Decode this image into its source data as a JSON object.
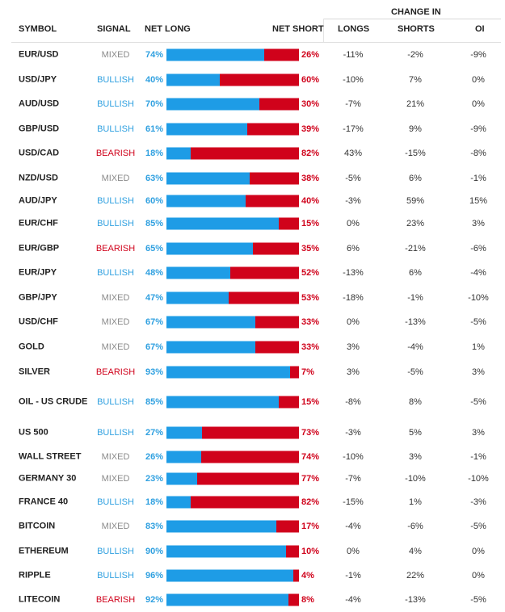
{
  "header": {
    "change_in": "CHANGE IN",
    "symbol": "SYMBOL",
    "signal": "SIGNAL",
    "net_long": "NET LONG",
    "net_short": "NET SHORT",
    "longs": "LONGS",
    "shorts": "SHORTS",
    "oi": "OI"
  },
  "colors": {
    "long_bar": "#1e9ce6",
    "short_bar": "#d0021b",
    "bullish": "#2fa0e0",
    "bearish": "#d0021b",
    "mixed": "#8a8a8a"
  },
  "rows": [
    {
      "symbol": "EUR/USD",
      "signal": "MIXED",
      "long": 74,
      "short": 26,
      "long_label": "74%",
      "short_label": "26%",
      "chg_longs": "-11%",
      "chg_shorts": "-2%",
      "chg_oi": "-9%"
    },
    {
      "symbol": "USD/JPY",
      "signal": "BULLISH",
      "long": 40,
      "short": 60,
      "long_label": "40%",
      "short_label": "60%",
      "chg_longs": "-10%",
      "chg_shorts": "7%",
      "chg_oi": "0%"
    },
    {
      "symbol": "AUD/USD",
      "signal": "BULLISH",
      "long": 70,
      "short": 30,
      "long_label": "70%",
      "short_label": "30%",
      "chg_longs": "-7%",
      "chg_shorts": "21%",
      "chg_oi": "0%"
    },
    {
      "symbol": "GBP/USD",
      "signal": "BULLISH",
      "long": 61,
      "short": 39,
      "long_label": "61%",
      "short_label": "39%",
      "chg_longs": "-17%",
      "chg_shorts": "9%",
      "chg_oi": "-9%"
    },
    {
      "symbol": "USD/CAD",
      "signal": "BEARISH",
      "long": 18,
      "short": 82,
      "long_label": "18%",
      "short_label": "82%",
      "chg_longs": "43%",
      "chg_shorts": "-15%",
      "chg_oi": "-8%"
    },
    {
      "symbol": "NZD/USD",
      "signal": "MIXED",
      "long": 63,
      "short": 38,
      "long_label": "63%",
      "short_label": "38%",
      "chg_longs": "-5%",
      "chg_shorts": "6%",
      "chg_oi": "-1%"
    },
    {
      "symbol": "AUD/JPY",
      "signal": "BULLISH",
      "long": 60,
      "short": 40,
      "long_label": "60%",
      "short_label": "40%",
      "chg_longs": "-3%",
      "chg_shorts": "59%",
      "chg_oi": "15%"
    },
    {
      "symbol": "EUR/CHF",
      "signal": "BULLISH",
      "long": 85,
      "short": 15,
      "long_label": "85%",
      "short_label": "15%",
      "chg_longs": "0%",
      "chg_shorts": "23%",
      "chg_oi": "3%"
    },
    {
      "symbol": "EUR/GBP",
      "signal": "BEARISH",
      "long": 65,
      "short": 35,
      "long_label": "65%",
      "short_label": "35%",
      "chg_longs": "6%",
      "chg_shorts": "-21%",
      "chg_oi": "-6%"
    },
    {
      "symbol": "EUR/JPY",
      "signal": "BULLISH",
      "long": 48,
      "short": 52,
      "long_label": "48%",
      "short_label": "52%",
      "chg_longs": "-13%",
      "chg_shorts": "6%",
      "chg_oi": "-4%"
    },
    {
      "symbol": "GBP/JPY",
      "signal": "MIXED",
      "long": 47,
      "short": 53,
      "long_label": "47%",
      "short_label": "53%",
      "chg_longs": "-18%",
      "chg_shorts": "-1%",
      "chg_oi": "-10%"
    },
    {
      "symbol": "USD/CHF",
      "signal": "MIXED",
      "long": 67,
      "short": 33,
      "long_label": "67%",
      "short_label": "33%",
      "chg_longs": "0%",
      "chg_shorts": "-13%",
      "chg_oi": "-5%"
    },
    {
      "symbol": "GOLD",
      "signal": "MIXED",
      "long": 67,
      "short": 33,
      "long_label": "67%",
      "short_label": "33%",
      "chg_longs": "3%",
      "chg_shorts": "-4%",
      "chg_oi": "1%"
    },
    {
      "symbol": "SILVER",
      "signal": "BEARISH",
      "long": 93,
      "short": 7,
      "long_label": "93%",
      "short_label": "7%",
      "chg_longs": "3%",
      "chg_shorts": "-5%",
      "chg_oi": "3%"
    },
    {
      "symbol": "OIL - US CRUDE",
      "signal": "BULLISH",
      "long": 85,
      "short": 15,
      "long_label": "85%",
      "short_label": "15%",
      "chg_longs": "-8%",
      "chg_shorts": "8%",
      "chg_oi": "-5%"
    },
    {
      "symbol": "US 500",
      "signal": "BULLISH",
      "long": 27,
      "short": 73,
      "long_label": "27%",
      "short_label": "73%",
      "chg_longs": "-3%",
      "chg_shorts": "5%",
      "chg_oi": "3%"
    },
    {
      "symbol": "WALL STREET",
      "signal": "MIXED",
      "long": 26,
      "short": 74,
      "long_label": "26%",
      "short_label": "74%",
      "chg_longs": "-10%",
      "chg_shorts": "3%",
      "chg_oi": "-1%"
    },
    {
      "symbol": "GERMANY 30",
      "signal": "MIXED",
      "long": 23,
      "short": 77,
      "long_label": "23%",
      "short_label": "77%",
      "chg_longs": "-7%",
      "chg_shorts": "-10%",
      "chg_oi": "-10%"
    },
    {
      "symbol": "FRANCE 40",
      "signal": "BULLISH",
      "long": 18,
      "short": 82,
      "long_label": "18%",
      "short_label": "82%",
      "chg_longs": "-15%",
      "chg_shorts": "1%",
      "chg_oi": "-3%"
    },
    {
      "symbol": "BITCOIN",
      "signal": "MIXED",
      "long": 83,
      "short": 17,
      "long_label": "83%",
      "short_label": "17%",
      "chg_longs": "-4%",
      "chg_shorts": "-6%",
      "chg_oi": "-5%"
    },
    {
      "symbol": "ETHEREUM",
      "signal": "BULLISH",
      "long": 90,
      "short": 10,
      "long_label": "90%",
      "short_label": "10%",
      "chg_longs": "0%",
      "chg_shorts": "4%",
      "chg_oi": "0%"
    },
    {
      "symbol": "RIPPLE",
      "signal": "BULLISH",
      "long": 96,
      "short": 4,
      "long_label": "96%",
      "short_label": "4%",
      "chg_longs": "-1%",
      "chg_shorts": "22%",
      "chg_oi": "0%"
    },
    {
      "symbol": "LITECOIN",
      "signal": "BEARISH",
      "long": 92,
      "short": 8,
      "long_label": "92%",
      "short_label": "8%",
      "chg_longs": "-4%",
      "chg_shorts": "-13%",
      "chg_oi": "-5%"
    }
  ]
}
